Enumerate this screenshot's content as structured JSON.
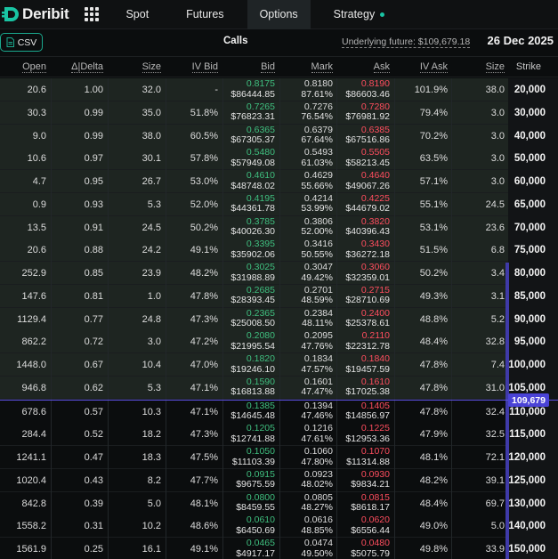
{
  "nav": {
    "brand": "Deribit",
    "tabs": [
      {
        "label": "Spot"
      },
      {
        "label": "Futures"
      },
      {
        "label": "Options"
      },
      {
        "label": "Strategy"
      }
    ]
  },
  "subheader": {
    "csv_label": "CSV",
    "title": "Calls",
    "underlying": "Underlying future: $109,679.18",
    "expiry": "26 Dec 2025"
  },
  "columns": [
    "Open",
    "Δ|Delta",
    "Size",
    "IV Bid",
    "Bid",
    "Mark",
    "Ask",
    "IV Ask",
    "Size",
    "Strike"
  ],
  "price_badge": "109,679",
  "colors": {
    "bid": "#3fbf7f",
    "ask": "#ff4d5e",
    "accent": "#19c4a3",
    "price_line": "#5a4fe0"
  },
  "rows": [
    {
      "open": "20.6",
      "delta": "1.00",
      "bid_size": "32.0",
      "iv_bid": "-",
      "bid": "0.8175",
      "bid_usd": "$86444.85",
      "mark": "0.8180",
      "mark_iv": "87.61%",
      "ask": "0.8190",
      "ask_usd": "$86603.46",
      "iv_ask": "101.9%",
      "ask_size": "38.0",
      "strike": "20,000"
    },
    {
      "open": "30.3",
      "delta": "0.99",
      "bid_size": "35.0",
      "iv_bid": "51.8%",
      "bid": "0.7265",
      "bid_usd": "$76823.31",
      "mark": "0.7276",
      "mark_iv": "76.54%",
      "ask": "0.7280",
      "ask_usd": "$76981.92",
      "iv_ask": "79.4%",
      "ask_size": "3.0",
      "strike": "30,000"
    },
    {
      "open": "9.0",
      "delta": "0.99",
      "bid_size": "38.0",
      "iv_bid": "60.5%",
      "bid": "0.6365",
      "bid_usd": "$67305.37",
      "mark": "0.6379",
      "mark_iv": "67.64%",
      "ask": "0.6385",
      "ask_usd": "$67516.86",
      "iv_ask": "70.2%",
      "ask_size": "3.0",
      "strike": "40,000"
    },
    {
      "open": "10.6",
      "delta": "0.97",
      "bid_size": "30.1",
      "iv_bid": "57.8%",
      "bid": "0.5480",
      "bid_usd": "$57949.08",
      "mark": "0.5493",
      "mark_iv": "61.03%",
      "ask": "0.5505",
      "ask_usd": "$58213.45",
      "iv_ask": "63.5%",
      "ask_size": "3.0",
      "strike": "50,000"
    },
    {
      "open": "4.7",
      "delta": "0.95",
      "bid_size": "26.7",
      "iv_bid": "53.0%",
      "bid": "0.4610",
      "bid_usd": "$48748.02",
      "mark": "0.4629",
      "mark_iv": "55.66%",
      "ask": "0.4640",
      "ask_usd": "$49067.26",
      "iv_ask": "57.1%",
      "ask_size": "3.0",
      "strike": "60,000"
    },
    {
      "open": "0.9",
      "delta": "0.93",
      "bid_size": "5.3",
      "iv_bid": "52.0%",
      "bid": "0.4195",
      "bid_usd": "$44361.78",
      "mark": "0.4214",
      "mark_iv": "53.99%",
      "ask": "0.4225",
      "ask_usd": "$44679.02",
      "iv_ask": "55.1%",
      "ask_size": "24.5",
      "strike": "65,000"
    },
    {
      "open": "13.5",
      "delta": "0.91",
      "bid_size": "24.5",
      "iv_bid": "50.2%",
      "bid": "0.3785",
      "bid_usd": "$40026.30",
      "mark": "0.3806",
      "mark_iv": "52.00%",
      "ask": "0.3820",
      "ask_usd": "$40396.43",
      "iv_ask": "53.1%",
      "ask_size": "23.6",
      "strike": "70,000"
    },
    {
      "open": "20.6",
      "delta": "0.88",
      "bid_size": "24.2",
      "iv_bid": "49.1%",
      "bid": "0.3395",
      "bid_usd": "$35902.06",
      "mark": "0.3416",
      "mark_iv": "50.55%",
      "ask": "0.3430",
      "ask_usd": "$36272.18",
      "iv_ask": "51.5%",
      "ask_size": "6.8",
      "strike": "75,000"
    },
    {
      "open": "252.9",
      "delta": "0.85",
      "bid_size": "23.9",
      "iv_bid": "48.2%",
      "bid": "0.3025",
      "bid_usd": "$31988.89",
      "mark": "0.3047",
      "mark_iv": "49.42%",
      "ask": "0.3060",
      "ask_usd": "$32359.01",
      "iv_ask": "50.2%",
      "ask_size": "3.4",
      "strike": "80,000"
    },
    {
      "open": "147.6",
      "delta": "0.81",
      "bid_size": "1.0",
      "iv_bid": "47.8%",
      "bid": "0.2685",
      "bid_usd": "$28393.45",
      "mark": "0.2701",
      "mark_iv": "48.59%",
      "ask": "0.2715",
      "ask_usd": "$28710.69",
      "iv_ask": "49.3%",
      "ask_size": "3.1",
      "strike": "85,000"
    },
    {
      "open": "1129.4",
      "delta": "0.77",
      "bid_size": "24.8",
      "iv_bid": "47.3%",
      "bid": "0.2365",
      "bid_usd": "$25008.50",
      "mark": "0.2384",
      "mark_iv": "48.11%",
      "ask": "0.2400",
      "ask_usd": "$25378.61",
      "iv_ask": "48.8%",
      "ask_size": "5.2",
      "strike": "90,000"
    },
    {
      "open": "862.2",
      "delta": "0.72",
      "bid_size": "3.0",
      "iv_bid": "47.2%",
      "bid": "0.2080",
      "bid_usd": "$21995.54",
      "mark": "0.2095",
      "mark_iv": "47.76%",
      "ask": "0.2110",
      "ask_usd": "$22312.78",
      "iv_ask": "48.4%",
      "ask_size": "32.8",
      "strike": "95,000"
    },
    {
      "open": "1448.0",
      "delta": "0.67",
      "bid_size": "10.4",
      "iv_bid": "47.0%",
      "bid": "0.1820",
      "bid_usd": "$19246.10",
      "mark": "0.1834",
      "mark_iv": "47.57%",
      "ask": "0.1840",
      "ask_usd": "$19457.59",
      "iv_ask": "47.8%",
      "ask_size": "7.4",
      "strike": "100,000"
    },
    {
      "open": "946.8",
      "delta": "0.62",
      "bid_size": "5.3",
      "iv_bid": "47.1%",
      "bid": "0.1590",
      "bid_usd": "$16813.88",
      "mark": "0.1601",
      "mark_iv": "47.47%",
      "ask": "0.1610",
      "ask_usd": "$17025.38",
      "iv_ask": "47.8%",
      "ask_size": "31.0",
      "strike": "105,000"
    },
    {
      "open": "678.6",
      "delta": "0.57",
      "bid_size": "10.3",
      "iv_bid": "47.1%",
      "bid": "0.1385",
      "bid_usd": "$14645.48",
      "mark": "0.1394",
      "mark_iv": "47.46%",
      "ask": "0.1405",
      "ask_usd": "$14856.97",
      "iv_ask": "47.8%",
      "ask_size": "32.4",
      "strike": "110,000"
    },
    {
      "open": "284.4",
      "delta": "0.52",
      "bid_size": "18.2",
      "iv_bid": "47.3%",
      "bid": "0.1205",
      "bid_usd": "$12741.88",
      "mark": "0.1216",
      "mark_iv": "47.61%",
      "ask": "0.1225",
      "ask_usd": "$12953.36",
      "iv_ask": "47.9%",
      "ask_size": "32.5",
      "strike": "115,000"
    },
    {
      "open": "1241.1",
      "delta": "0.47",
      "bid_size": "18.3",
      "iv_bid": "47.5%",
      "bid": "0.1050",
      "bid_usd": "$11103.39",
      "mark": "0.1060",
      "mark_iv": "47.80%",
      "ask": "0.1070",
      "ask_usd": "$11314.88",
      "iv_ask": "48.1%",
      "ask_size": "72.1",
      "strike": "120,000"
    },
    {
      "open": "1020.4",
      "delta": "0.43",
      "bid_size": "8.2",
      "iv_bid": "47.7%",
      "bid": "0.0915",
      "bid_usd": "$9675.59",
      "mark": "0.0923",
      "mark_iv": "48.02%",
      "ask": "0.0930",
      "ask_usd": "$9834.21",
      "iv_ask": "48.2%",
      "ask_size": "39.1",
      "strike": "125,000"
    },
    {
      "open": "842.8",
      "delta": "0.39",
      "bid_size": "5.0",
      "iv_bid": "48.1%",
      "bid": "0.0800",
      "bid_usd": "$8459.55",
      "mark": "0.0805",
      "mark_iv": "48.27%",
      "ask": "0.0815",
      "ask_usd": "$8618.17",
      "iv_ask": "48.4%",
      "ask_size": "69.7",
      "strike": "130,000"
    },
    {
      "open": "1558.2",
      "delta": "0.31",
      "bid_size": "10.2",
      "iv_bid": "48.6%",
      "bid": "0.0610",
      "bid_usd": "$6450.69",
      "mark": "0.0616",
      "mark_iv": "48.85%",
      "ask": "0.0620",
      "ask_usd": "$6556.44",
      "iv_ask": "49.0%",
      "ask_size": "5.0",
      "strike": "140,000"
    },
    {
      "open": "1561.9",
      "delta": "0.25",
      "bid_size": "16.1",
      "iv_bid": "49.1%",
      "bid": "0.0465",
      "bid_usd": "$4917.17",
      "mark": "0.0474",
      "mark_iv": "49.50%",
      "ask": "0.0480",
      "ask_usd": "$5075.79",
      "iv_ask": "49.8%",
      "ask_size": "33.9",
      "strike": "150,000"
    }
  ]
}
